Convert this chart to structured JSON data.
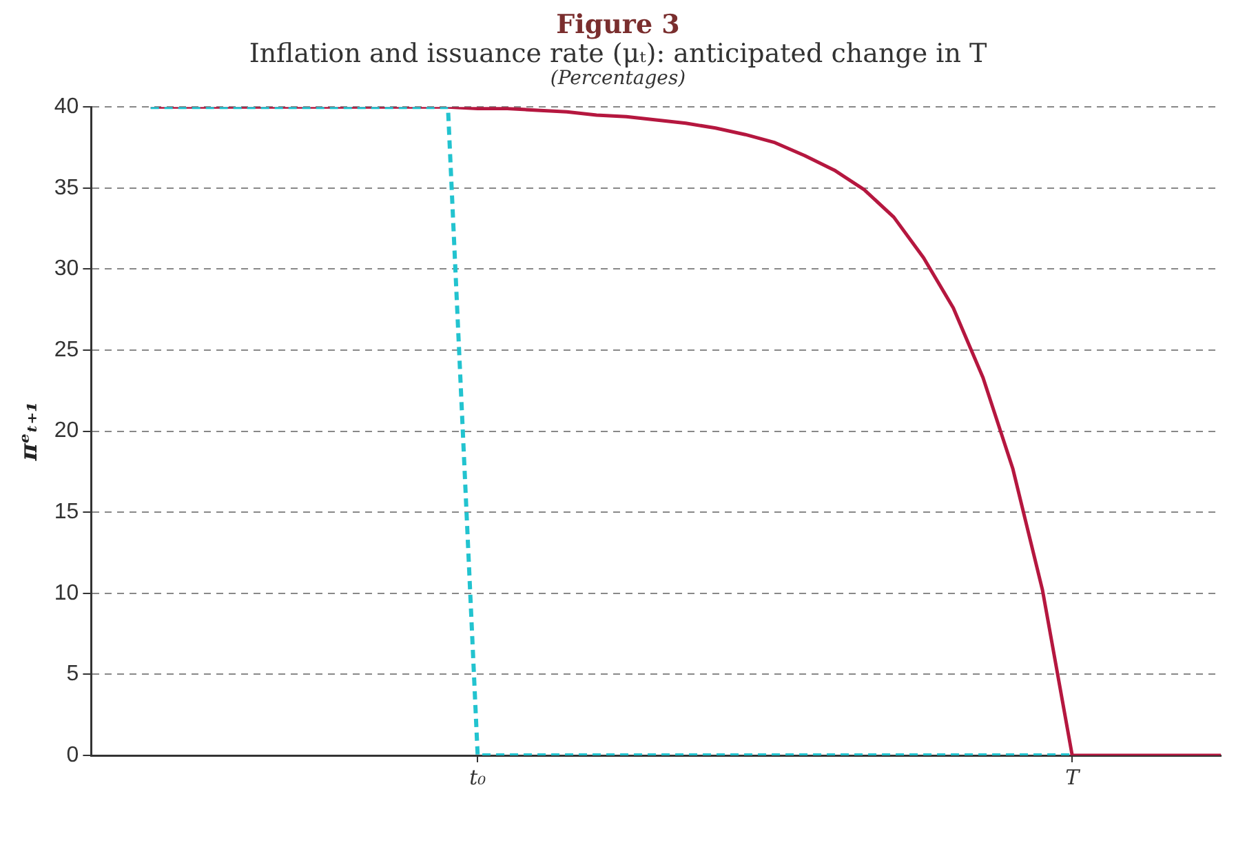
{
  "chart_data": {
    "type": "line",
    "title": "Figure 3",
    "subtitle": "Inflation and issuance rate (μₜ): anticipated change in T",
    "annotations": [
      "(Percentages)"
    ],
    "ylabel": "πᵉₜ₊₁",
    "categories": [
      null,
      null,
      null,
      null,
      null,
      null,
      null,
      null,
      null,
      null,
      null,
      null,
      null,
      "t₀",
      null,
      null,
      null,
      null,
      null,
      null,
      null,
      null,
      null,
      null,
      null,
      null,
      null,
      null,
      null,
      null,
      null,
      null,
      null,
      "T",
      null,
      null,
      null,
      null,
      null
    ],
    "ylim": [
      0,
      40
    ],
    "yticks": [
      0,
      5,
      10,
      15,
      20,
      25,
      30,
      35,
      40
    ],
    "grid": "y",
    "legend": false,
    "marker": "none",
    "series": [
      {
        "color": "#22c3cf",
        "line_style": "dashed",
        "values": [
          null,
          null,
          40,
          40,
          40,
          40,
          40,
          40,
          40,
          40,
          40,
          40,
          40,
          0,
          0,
          0,
          0,
          0,
          0,
          0,
          0,
          0,
          0,
          0,
          0,
          0,
          0,
          0,
          0,
          0,
          0,
          0,
          0,
          0,
          null,
          null,
          null,
          null,
          null
        ]
      },
      {
        "color": "#b5173f",
        "line_style": "solid",
        "values": [
          null,
          null,
          40,
          40,
          40,
          40,
          40,
          40,
          40,
          40,
          40,
          40,
          40,
          39.9,
          39.9,
          39.8,
          39.7,
          39.5,
          39.4,
          39.2,
          39.0,
          38.7,
          38.3,
          37.8,
          37.0,
          36.1,
          34.9,
          33.2,
          30.7,
          27.6,
          23.3,
          17.7,
          10.2,
          0,
          0,
          0,
          0,
          0,
          0
        ]
      }
    ]
  }
}
